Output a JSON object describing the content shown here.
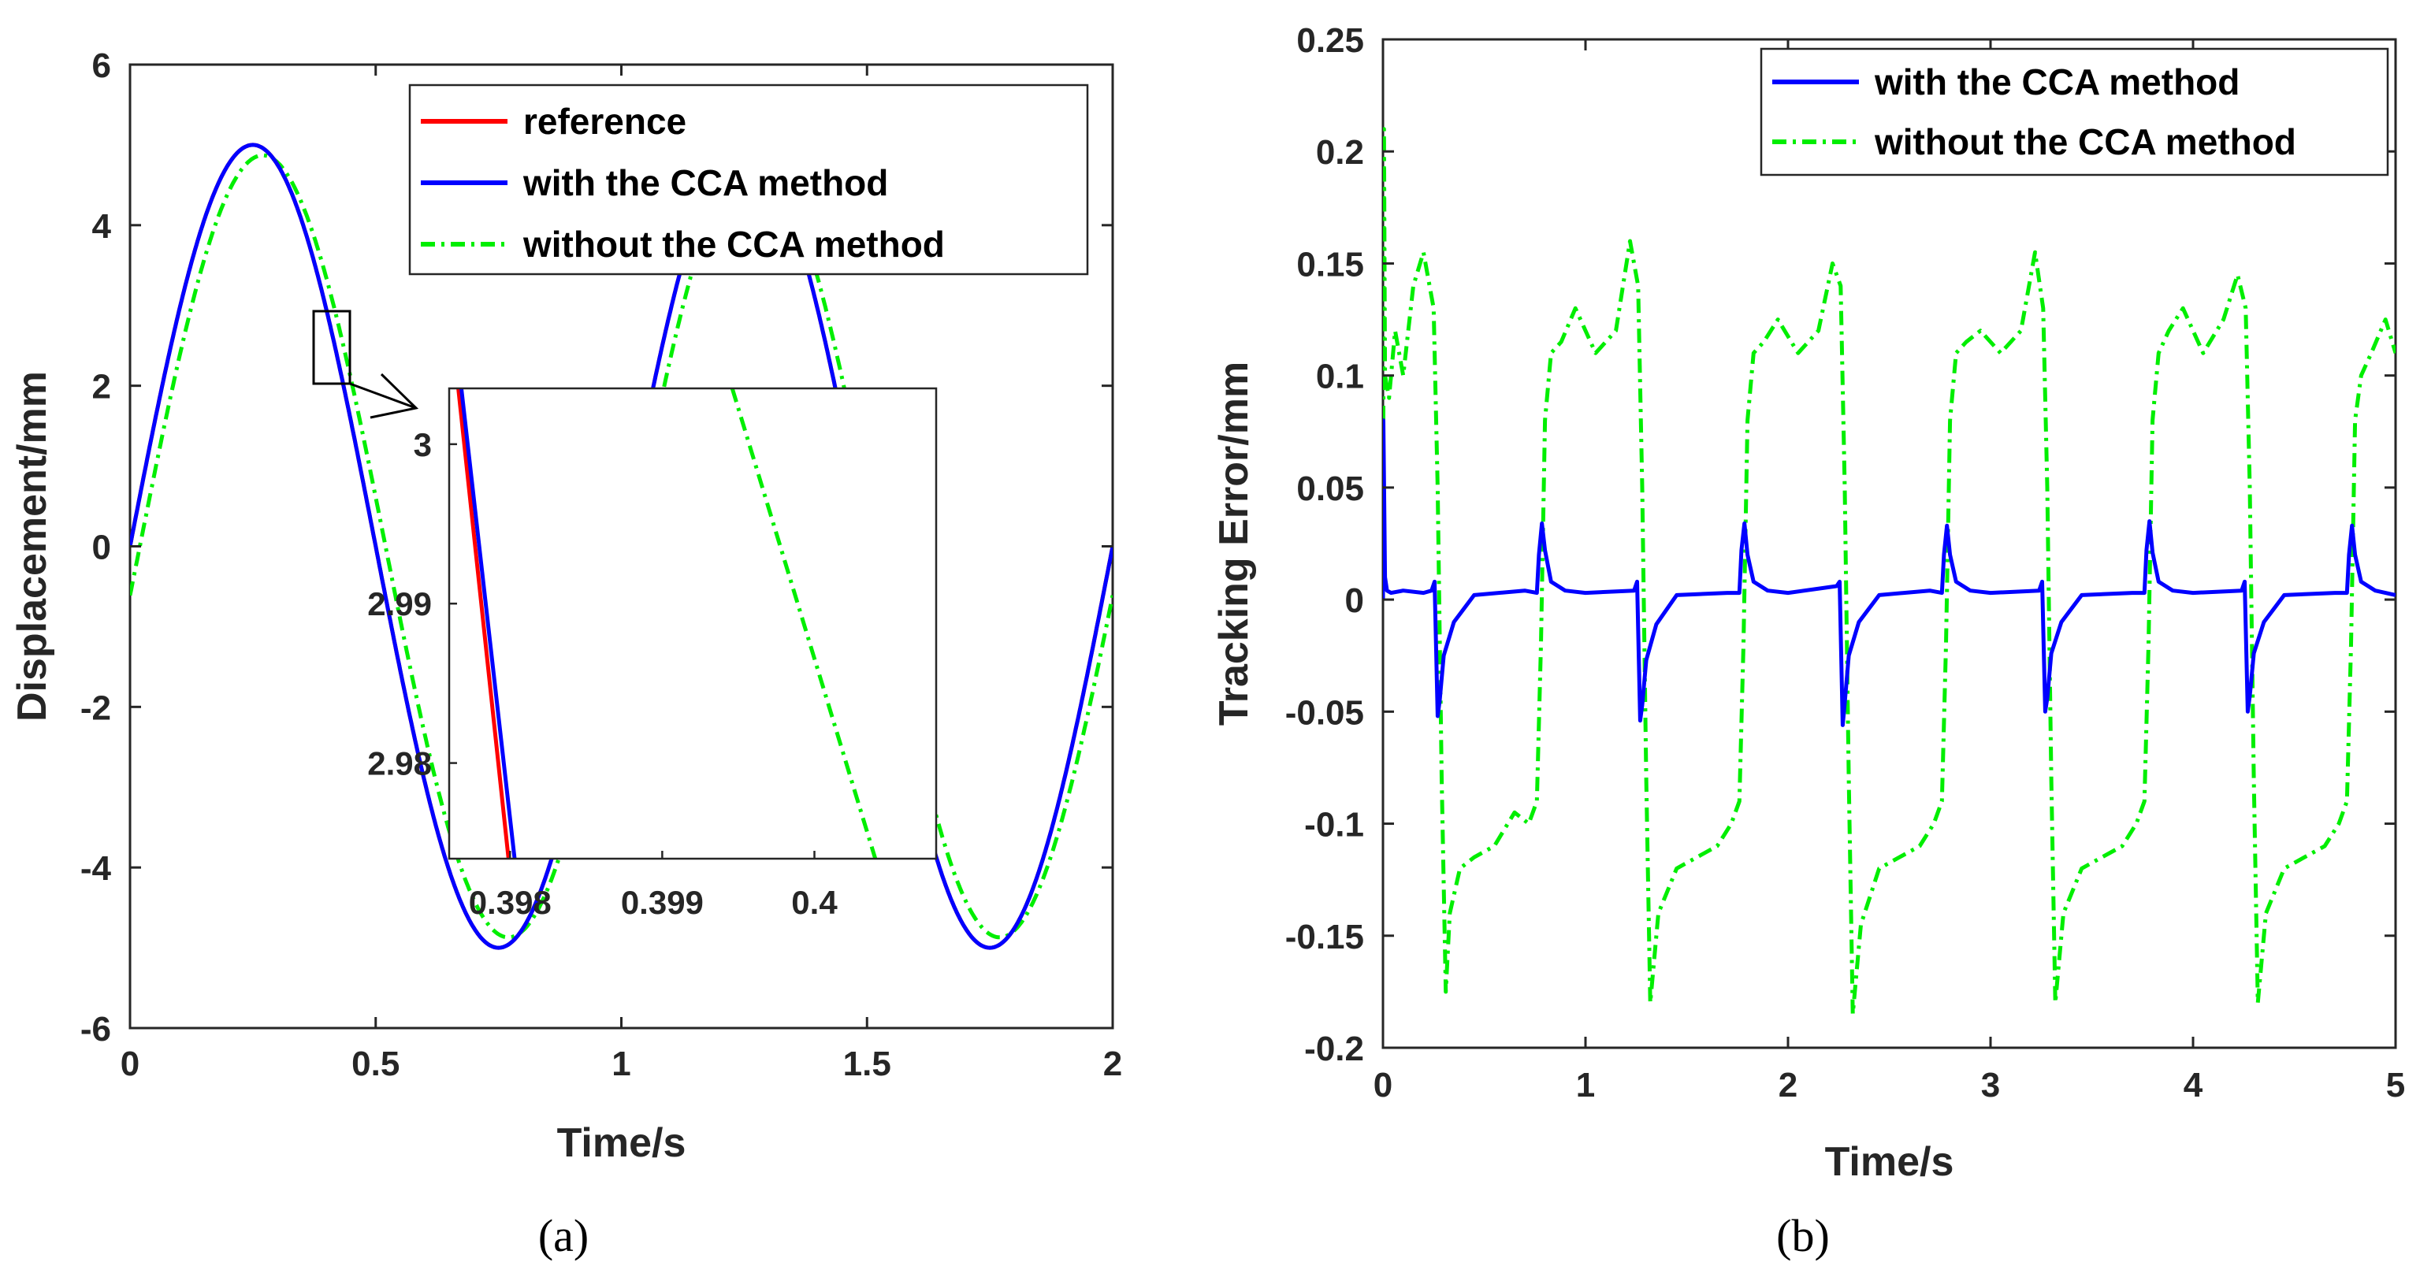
{
  "chart_data": [
    {
      "type": "line",
      "panel": "(a)",
      "xlabel": "Time/s",
      "ylabel": "Displacement/mm",
      "xlim": [
        0,
        2
      ],
      "ylim": [
        -6,
        6
      ],
      "xticks": [
        0,
        0.5,
        1,
        1.5,
        2
      ],
      "xtick_labels": [
        "0",
        "0.5",
        "1",
        "1.5",
        "2"
      ],
      "yticks": [
        -6,
        -4,
        -2,
        0,
        2,
        4,
        6
      ],
      "ytick_labels": [
        "-6",
        "-4",
        "-2",
        "0",
        "2",
        "4",
        "6"
      ],
      "legend_position": "top-right",
      "series": [
        {
          "name": "reference",
          "color": "#ff0000",
          "style": "solid",
          "amplitude": 5,
          "frequency_hz": 1,
          "phase_lag_s": 0
        },
        {
          "name": "with the CCA method",
          "color": "#0000ff",
          "style": "solid",
          "amplitude": 5,
          "frequency_hz": 1,
          "phase_lag_s": 3e-05
        },
        {
          "name": "without the CCA method",
          "color": "#00ee00",
          "style": "dashdot",
          "amplitude": 4.87,
          "frequency_hz": 1,
          "phase_lag_s": 0.02
        }
      ],
      "inset": {
        "xlim": [
          0.3976,
          0.4008
        ],
        "ylim": [
          2.974,
          3.0035
        ],
        "xticks": [
          0.398,
          0.399,
          0.4
        ],
        "xtick_labels": [
          "0.398",
          "0.399",
          "0.4"
        ],
        "yticks": [
          2.98,
          2.99,
          3
        ],
        "ytick_labels": [
          "2.98",
          "2.99",
          "3"
        ],
        "lines": [
          {
            "name": "reference",
            "x": [
              0.39766,
              0.39799
            ],
            "y": [
              3.0035,
              2.974
            ]
          },
          {
            "name": "with the CCA method",
            "x": [
              0.39768,
              0.39803
            ],
            "y": [
              3.0035,
              2.974
            ]
          },
          {
            "name": "without the CCA method",
            "x": [
              0.39946,
              0.4004
            ],
            "y": [
              3.0035,
              2.974
            ]
          }
        ]
      }
    },
    {
      "type": "line",
      "panel": "(b)",
      "xlabel": "Time/s",
      "ylabel": "Tracking Error/mm",
      "xlim": [
        0,
        5
      ],
      "ylim": [
        -0.2,
        0.25
      ],
      "xticks": [
        0,
        1,
        2,
        3,
        4,
        5
      ],
      "xtick_labels": [
        "0",
        "1",
        "2",
        "3",
        "4",
        "5"
      ],
      "yticks": [
        -0.2,
        -0.15,
        -0.1,
        -0.05,
        0,
        0.05,
        0.1,
        0.15,
        0.2,
        0.25
      ],
      "ytick_labels": [
        "-0.2",
        "-0.15",
        "-0.1",
        "-0.05",
        "0",
        "0.05",
        "0.1",
        "0.15",
        "0.2",
        "0.25"
      ],
      "legend_position": "top-right",
      "series": [
        {
          "name": "with the CCA method",
          "color": "#0000ff",
          "style": "solid",
          "x": [
            0,
            0.002,
            0.01,
            0.02,
            0.04,
            0.1,
            0.2,
            0.24,
            0.255,
            0.27,
            0.28,
            0.3,
            0.35,
            0.45,
            0.7,
            0.76,
            0.77,
            0.785,
            0.8,
            0.83,
            0.9,
            1.0,
            1.24,
            1.255,
            1.27,
            1.28,
            1.3,
            1.35,
            1.45,
            1.7,
            1.76,
            1.77,
            1.785,
            1.8,
            1.83,
            1.9,
            2.0,
            2.24,
            2.255,
            2.27,
            2.28,
            2.3,
            2.35,
            2.45,
            2.7,
            2.76,
            2.77,
            2.785,
            2.8,
            2.83,
            2.9,
            3.0,
            3.24,
            3.255,
            3.27,
            3.28,
            3.3,
            3.35,
            3.45,
            3.7,
            3.76,
            3.77,
            3.785,
            3.8,
            3.83,
            3.9,
            4.0,
            4.24,
            4.255,
            4.27,
            4.28,
            4.3,
            4.35,
            4.45,
            4.7,
            4.76,
            4.77,
            4.785,
            4.8,
            4.83,
            4.9,
            5.0
          ],
          "y": [
            0.0,
            0.08,
            0.01,
            0.004,
            0.003,
            0.004,
            0.003,
            0.004,
            0.008,
            -0.052,
            -0.045,
            -0.025,
            -0.01,
            0.002,
            0.004,
            0.003,
            0.02,
            0.034,
            0.022,
            0.008,
            0.004,
            0.003,
            0.004,
            0.008,
            -0.054,
            -0.047,
            -0.027,
            -0.011,
            0.002,
            0.003,
            0.003,
            0.022,
            0.034,
            0.02,
            0.008,
            0.004,
            0.003,
            0.006,
            0.008,
            -0.056,
            -0.046,
            -0.025,
            -0.01,
            0.002,
            0.004,
            0.003,
            0.02,
            0.033,
            0.02,
            0.008,
            0.004,
            0.003,
            0.004,
            0.008,
            -0.05,
            -0.044,
            -0.024,
            -0.01,
            0.002,
            0.003,
            0.003,
            0.022,
            0.035,
            0.021,
            0.008,
            0.004,
            0.003,
            0.004,
            0.008,
            -0.05,
            -0.043,
            -0.024,
            -0.01,
            0.002,
            0.003,
            0.003,
            0.02,
            0.033,
            0.02,
            0.008,
            0.004,
            0.002
          ]
        },
        {
          "name": "without the CCA method",
          "color": "#00ee00",
          "style": "dashdot",
          "x": [
            0,
            0.005,
            0.01,
            0.03,
            0.06,
            0.1,
            0.15,
            0.2,
            0.25,
            0.27,
            0.29,
            0.31,
            0.33,
            0.38,
            0.45,
            0.55,
            0.65,
            0.72,
            0.76,
            0.78,
            0.8,
            0.83,
            0.88,
            0.95,
            1.05,
            1.15,
            1.22,
            1.26,
            1.28,
            1.3,
            1.32,
            1.36,
            1.45,
            1.55,
            1.65,
            1.72,
            1.76,
            1.78,
            1.8,
            1.83,
            1.88,
            1.95,
            2.05,
            2.15,
            2.22,
            2.26,
            2.28,
            2.3,
            2.32,
            2.36,
            2.45,
            2.55,
            2.65,
            2.72,
            2.76,
            2.78,
            2.8,
            2.83,
            2.88,
            2.95,
            3.05,
            3.15,
            3.22,
            3.26,
            3.28,
            3.3,
            3.32,
            3.36,
            3.45,
            3.55,
            3.65,
            3.72,
            3.76,
            3.78,
            3.8,
            3.83,
            3.88,
            3.95,
            4.05,
            4.15,
            4.22,
            4.26,
            4.28,
            4.3,
            4.32,
            4.36,
            4.45,
            4.55,
            4.65,
            4.72,
            4.76,
            4.78,
            4.8,
            4.83,
            4.88,
            4.95,
            5.0
          ],
          "y": [
            0.0,
            0.21,
            0.1,
            0.09,
            0.12,
            0.1,
            0.14,
            0.155,
            0.13,
            0.05,
            -0.08,
            -0.175,
            -0.14,
            -0.12,
            -0.115,
            -0.11,
            -0.095,
            -0.1,
            -0.09,
            -0.02,
            0.08,
            0.11,
            0.115,
            0.13,
            0.11,
            0.12,
            0.16,
            0.14,
            0.05,
            -0.08,
            -0.18,
            -0.14,
            -0.12,
            -0.115,
            -0.11,
            -0.1,
            -0.09,
            -0.02,
            0.08,
            0.11,
            0.115,
            0.125,
            0.11,
            0.12,
            0.15,
            0.14,
            0.05,
            -0.08,
            -0.185,
            -0.145,
            -0.12,
            -0.115,
            -0.11,
            -0.1,
            -0.09,
            -0.02,
            0.08,
            0.11,
            0.115,
            0.12,
            0.11,
            0.12,
            0.155,
            0.13,
            0.05,
            -0.08,
            -0.18,
            -0.14,
            -0.12,
            -0.115,
            -0.11,
            -0.1,
            -0.09,
            -0.02,
            0.08,
            0.11,
            0.12,
            0.13,
            0.11,
            0.125,
            0.145,
            0.13,
            0.05,
            -0.08,
            -0.18,
            -0.14,
            -0.12,
            -0.115,
            -0.11,
            -0.1,
            -0.09,
            -0.02,
            0.08,
            0.1,
            0.11,
            0.125,
            0.11
          ]
        }
      ]
    }
  ]
}
